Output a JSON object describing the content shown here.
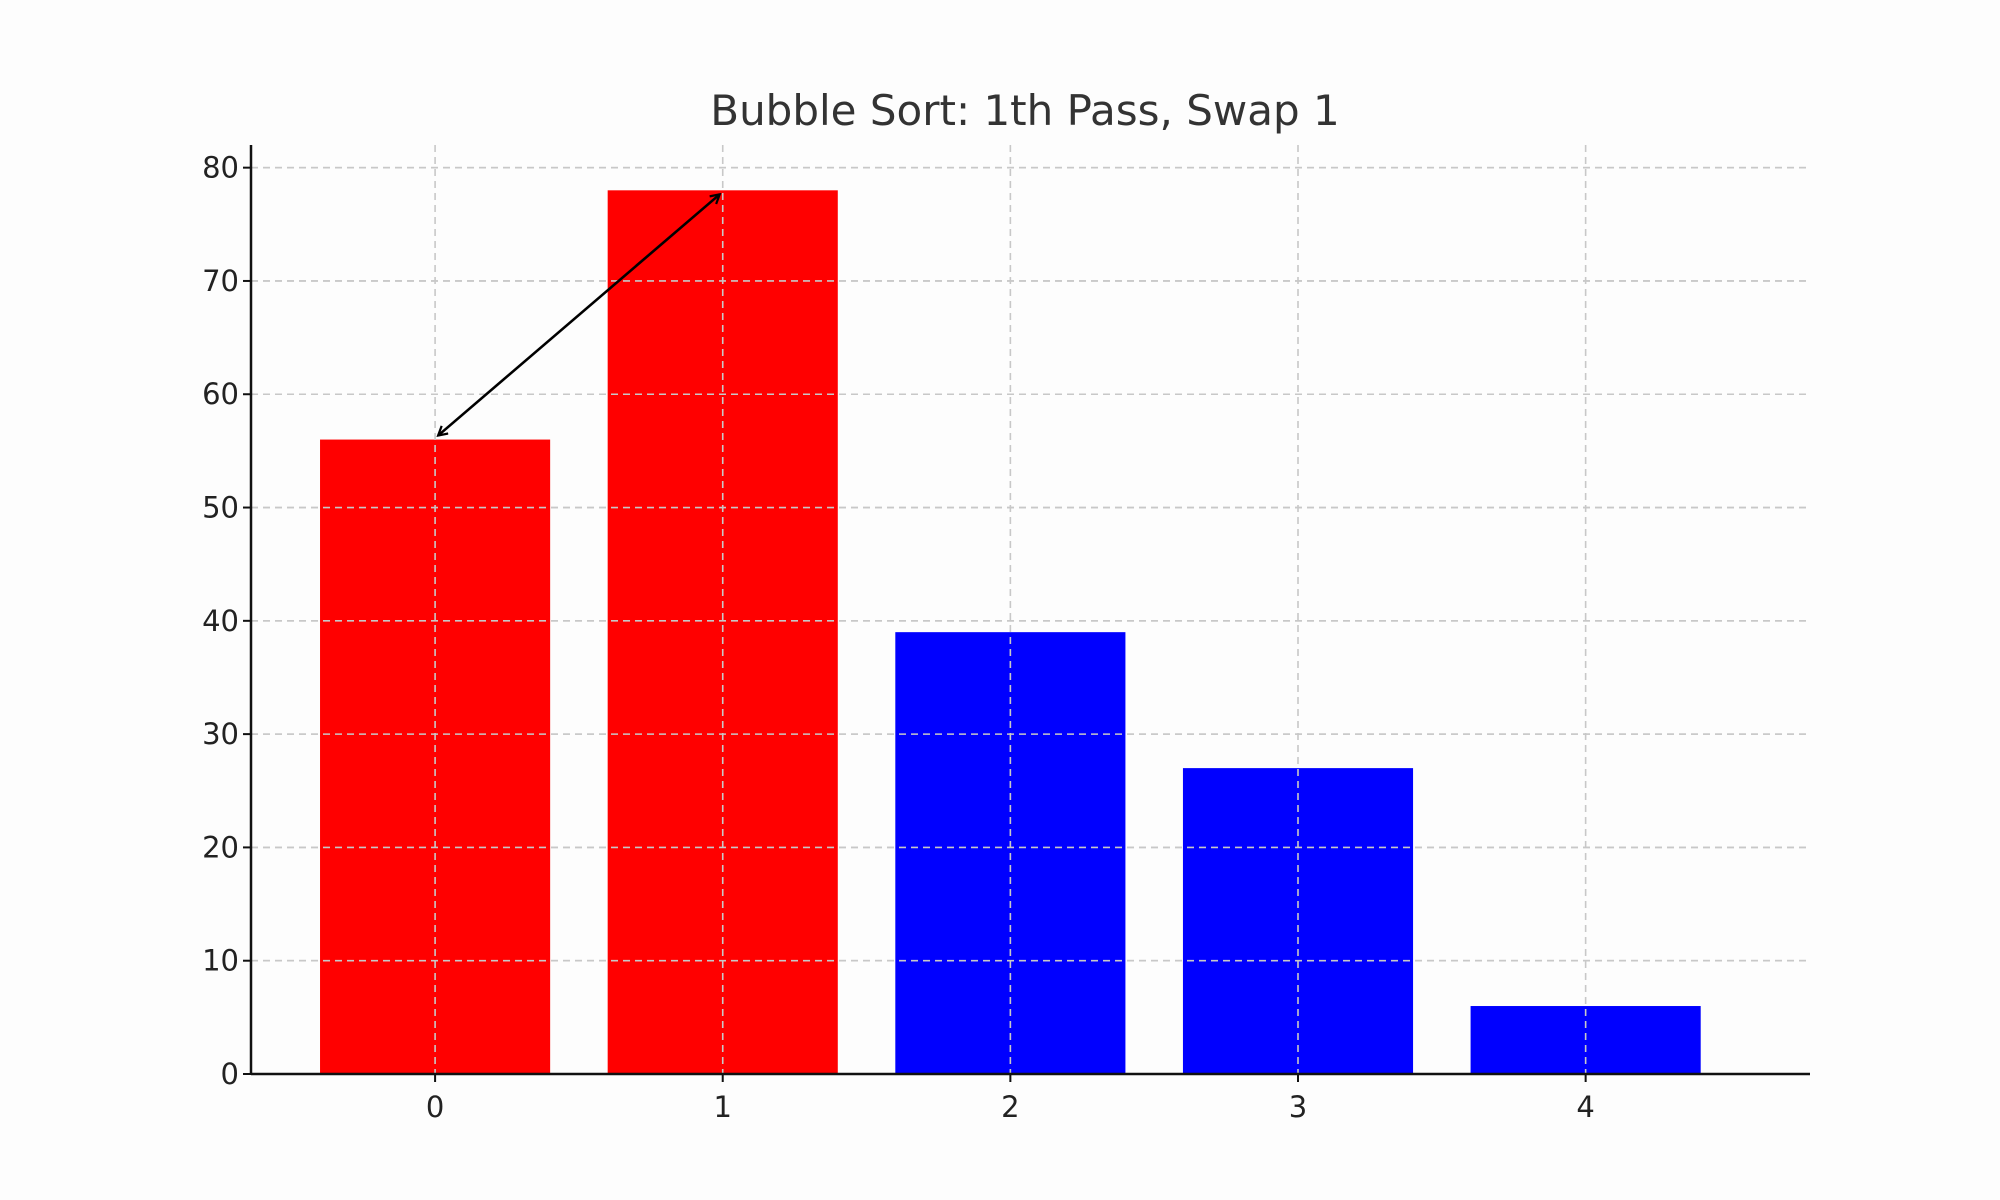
{
  "chart_data": {
    "type": "bar",
    "title": "Bubble Sort: 1th Pass, Swap 1",
    "xlabel": "",
    "ylabel": "",
    "categories": [
      "0",
      "1",
      "2",
      "3",
      "4"
    ],
    "values": [
      56,
      78,
      39,
      27,
      6
    ],
    "bar_colors": [
      "#ff0000",
      "#ff0000",
      "#0000ff",
      "#0000ff",
      "#0000ff"
    ],
    "ylim": [
      0,
      82
    ],
    "yticks": [
      0,
      10,
      20,
      30,
      40,
      50,
      60,
      70,
      80
    ],
    "grid": true,
    "legend": "none",
    "annotations": [
      {
        "type": "double-arrow",
        "from_index": 0,
        "from_value": 56,
        "to_index": 1,
        "to_value": 78
      }
    ]
  }
}
